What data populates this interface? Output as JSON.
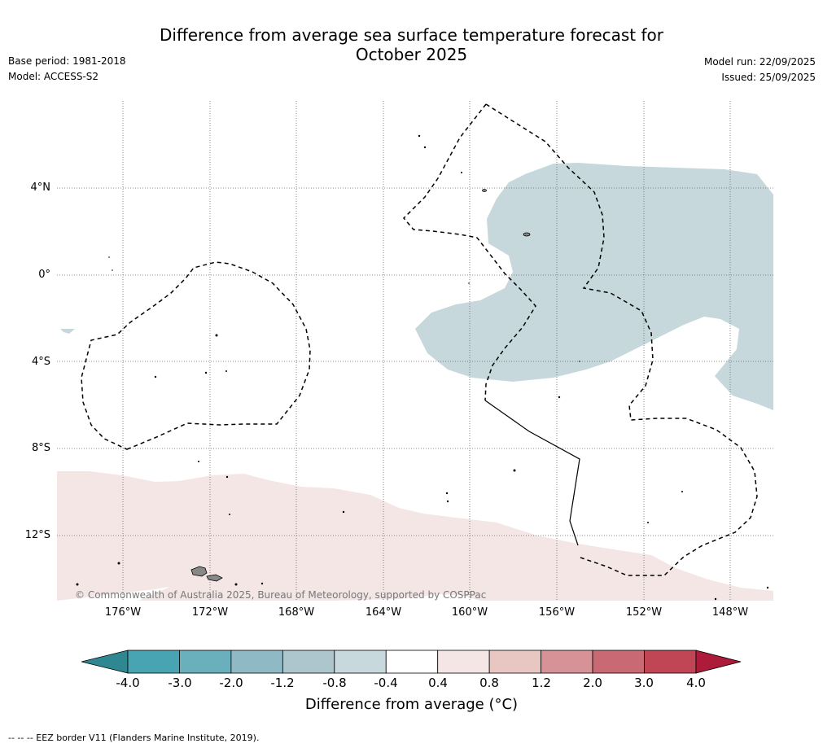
{
  "title_line1": "Difference from average sea surface temperature forecast for",
  "title_line2": "October 2025",
  "base_period": "Base period: 1981-2018",
  "model": "Model: ACCESS-S2",
  "model_run": "Model run: 22/09/2025",
  "issued": "Issued: 25/09/2025",
  "copyright": "© Commonwealth of Australia 2025, Bureau of Meteorology, supported by COSPPac",
  "lat_labels": [
    "4°N",
    "0°",
    "4°S",
    "8°S",
    "12°S"
  ],
  "lon_labels": [
    "176°W",
    "172°W",
    "168°W",
    "164°W",
    "160°W",
    "156°W",
    "152°W",
    "148°W"
  ],
  "colorbar": {
    "title": "Difference from average (°C)",
    "ticks": [
      "-4.0",
      "-3.0",
      "-2.0",
      "-1.2",
      "-0.8",
      "-0.4",
      "0.4",
      "0.8",
      "1.2",
      "2.0",
      "3.0",
      "4.0"
    ],
    "colors": [
      "#48a3b3",
      "#6aafbc",
      "#8fb9c5",
      "#adc6cd",
      "#c8d9dd",
      "#ffffff",
      "#f3e6e5",
      "#e8c6c1",
      "#d69297",
      "#c96974",
      "#c04656"
    ],
    "under_color": "#2f8891",
    "over_color": "#ad1a3a"
  },
  "footer": "-- -- -- EEZ border V11 (Flanders Marine Institute, 2019).",
  "colors": {
    "cool_anomaly": "#c6d8dc",
    "warm_anomaly": "#f3e6e5",
    "land": "#888888"
  }
}
